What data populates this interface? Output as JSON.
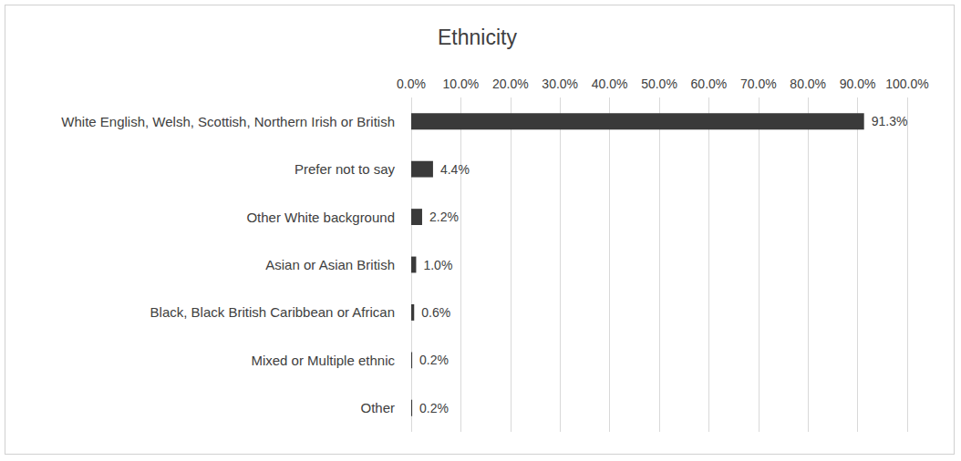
{
  "chart_data": {
    "type": "bar",
    "title": "Ethnicity",
    "orientation": "horizontal",
    "categories": [
      "White English, Welsh, Scottish, Northern Irish or British",
      "Prefer not to say",
      "Other White background",
      "Asian or Asian British",
      "Black, Black British Caribbean or African",
      "Mixed or Multiple ethnic",
      "Other"
    ],
    "values": [
      91.3,
      4.4,
      2.2,
      1.0,
      0.6,
      0.2,
      0.2
    ],
    "value_labels": [
      "91.3%",
      "4.4%",
      "2.2%",
      "1.0%",
      "0.6%",
      "0.2%",
      "0.2%"
    ],
    "data_labels": true,
    "color": "#3a3a3a",
    "xlim": [
      0,
      100
    ],
    "xticks": [
      {
        "value": 0,
        "label": "0.0%"
      },
      {
        "value": 10,
        "label": "10.0%"
      },
      {
        "value": 20,
        "label": "20.0%"
      },
      {
        "value": 30,
        "label": "30.0%"
      },
      {
        "value": 40,
        "label": "40.0%"
      },
      {
        "value": 50,
        "label": "50.0%"
      },
      {
        "value": 60,
        "label": "60.0%"
      },
      {
        "value": 70,
        "label": "70.0%"
      },
      {
        "value": 80,
        "label": "80.0%"
      },
      {
        "value": 90,
        "label": "90.0%"
      },
      {
        "value": 100,
        "label": "100.0%"
      }
    ],
    "grid": true
  }
}
